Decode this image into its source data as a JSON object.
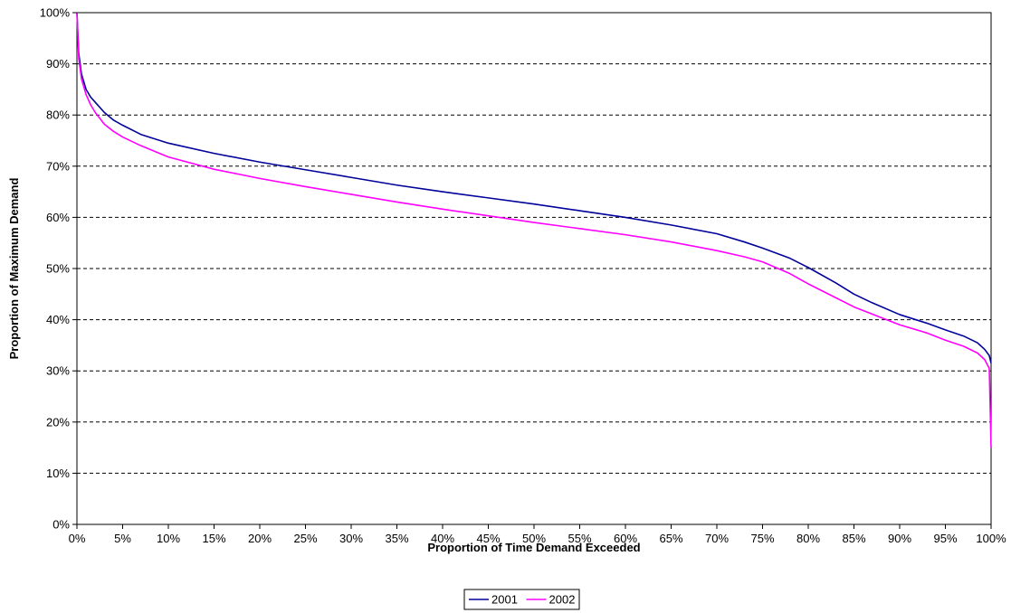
{
  "chart_data": {
    "type": "line",
    "title": "",
    "xlabel": "Proportion of Time Demand Exceeded",
    "ylabel": "Proportion of Maximum Demand",
    "xlim": [
      0,
      100
    ],
    "ylim": [
      0,
      100
    ],
    "x_ticks": [
      "0%",
      "5%",
      "10%",
      "15%",
      "20%",
      "25%",
      "30%",
      "35%",
      "40%",
      "45%",
      "50%",
      "55%",
      "60%",
      "65%",
      "70%",
      "75%",
      "80%",
      "85%",
      "90%",
      "95%",
      "100%"
    ],
    "y_ticks": [
      "0%",
      "10%",
      "20%",
      "30%",
      "40%",
      "50%",
      "60%",
      "70%",
      "80%",
      "90%",
      "100%"
    ],
    "grid": "horizontal-dashed",
    "legend": "bottom-center",
    "series": [
      {
        "name": "2001",
        "color": "#00009a",
        "points": [
          [
            0,
            100
          ],
          [
            0.2,
            92
          ],
          [
            0.5,
            88
          ],
          [
            1,
            85
          ],
          [
            1.5,
            83.5
          ],
          [
            2,
            82.5
          ],
          [
            3,
            80.5
          ],
          [
            4,
            79
          ],
          [
            5,
            78
          ],
          [
            7,
            76.2
          ],
          [
            10,
            74.5
          ],
          [
            15,
            72.5
          ],
          [
            20,
            70.8
          ],
          [
            25,
            69.3
          ],
          [
            30,
            67.8
          ],
          [
            35,
            66.3
          ],
          [
            40,
            65
          ],
          [
            45,
            63.8
          ],
          [
            50,
            62.6
          ],
          [
            55,
            61.3
          ],
          [
            60,
            60
          ],
          [
            65,
            58.5
          ],
          [
            70,
            56.8
          ],
          [
            73,
            55.2
          ],
          [
            75,
            54
          ],
          [
            78,
            52
          ],
          [
            80,
            50.2
          ],
          [
            83,
            47.2
          ],
          [
            85,
            45
          ],
          [
            87,
            43.3
          ],
          [
            90,
            41
          ],
          [
            93,
            39.3
          ],
          [
            95,
            38
          ],
          [
            97,
            36.8
          ],
          [
            98.5,
            35.5
          ],
          [
            99.3,
            34.2
          ],
          [
            99.8,
            33
          ],
          [
            100,
            31.5
          ]
        ]
      },
      {
        "name": "2002",
        "color": "#ff00ff",
        "points": [
          [
            0,
            100
          ],
          [
            0.2,
            91
          ],
          [
            0.5,
            87
          ],
          [
            1,
            84
          ],
          [
            1.5,
            82
          ],
          [
            2,
            80.5
          ],
          [
            3,
            78.2
          ],
          [
            4,
            76.8
          ],
          [
            5,
            75.7
          ],
          [
            7,
            74
          ],
          [
            10,
            71.8
          ],
          [
            15,
            69.4
          ],
          [
            20,
            67.6
          ],
          [
            25,
            66
          ],
          [
            30,
            64.5
          ],
          [
            35,
            63
          ],
          [
            40,
            61.6
          ],
          [
            45,
            60.3
          ],
          [
            50,
            59
          ],
          [
            55,
            57.8
          ],
          [
            60,
            56.6
          ],
          [
            65,
            55.2
          ],
          [
            70,
            53.5
          ],
          [
            73,
            52.3
          ],
          [
            75,
            51.3
          ],
          [
            78,
            49
          ],
          [
            80,
            47
          ],
          [
            83,
            44.3
          ],
          [
            85,
            42.5
          ],
          [
            88,
            40.4
          ],
          [
            90,
            39
          ],
          [
            93,
            37.4
          ],
          [
            95,
            36
          ],
          [
            97,
            34.8
          ],
          [
            98.5,
            33.5
          ],
          [
            99.3,
            32.2
          ],
          [
            99.8,
            30.5
          ],
          [
            100,
            15
          ]
        ]
      }
    ]
  }
}
